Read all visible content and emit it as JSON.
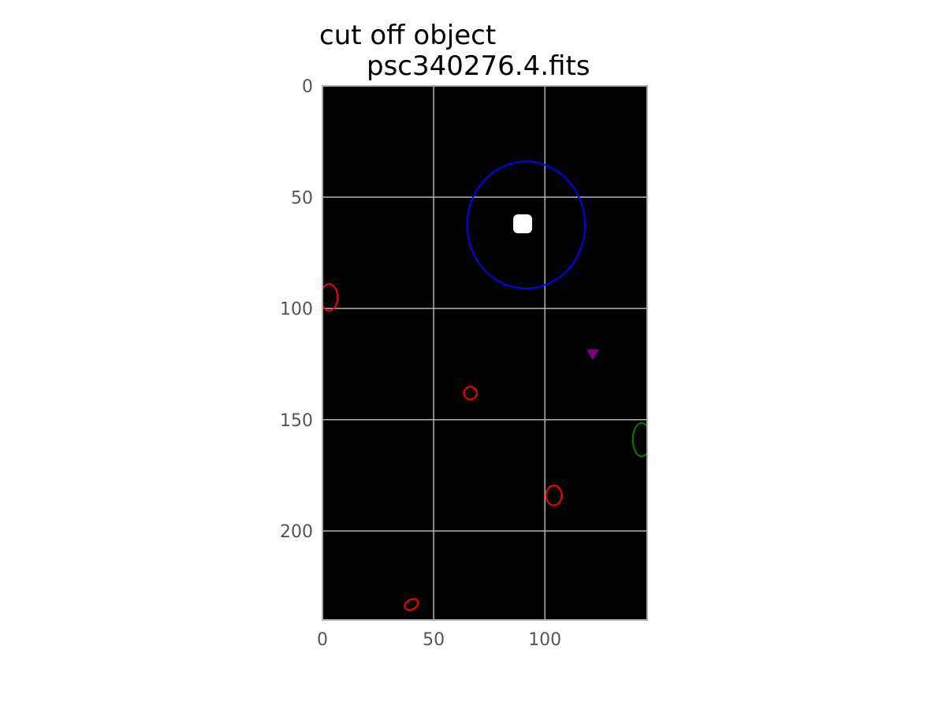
{
  "chart_data": {
    "type": "image",
    "title_lines": [
      "cut off object",
      "psc340276.4.fits"
    ],
    "xlabel": "",
    "ylabel": "",
    "xlim": [
      0,
      146
    ],
    "ylim": [
      240,
      0
    ],
    "xticks": [
      0,
      50,
      100
    ],
    "yticks": [
      0,
      50,
      100,
      150,
      200
    ],
    "grid": true,
    "colors": {
      "background": "#000000",
      "grid": "#b0b0b0",
      "frame": "#b0b0b0",
      "target_ellipse": "#0000ff",
      "source_ellipse": "#ff0000",
      "edge_ellipse": "#008000",
      "marker": "#800080",
      "object": "#ffffff"
    },
    "bright_object": {
      "x": 90,
      "y": 62
    },
    "target_ellipse": {
      "x": 91.5,
      "y": 62.5,
      "rx": 26.5,
      "ry": 28.5
    },
    "edge_ellipse": {
      "x": 143.5,
      "y": 159,
      "rx": 4,
      "ry": 7.5
    },
    "source_ellipses": [
      {
        "x": 3,
        "y": 95,
        "rx": 3.8,
        "ry": 6
      },
      {
        "x": 66.5,
        "y": 138,
        "rx": 2.9,
        "ry": 2.8
      },
      {
        "x": 104,
        "y": 184,
        "rx": 3.5,
        "ry": 4.5
      },
      {
        "x": 40,
        "y": 233,
        "rx": 3.2,
        "ry": 2.2,
        "angle": -30
      }
    ],
    "marker": {
      "x": 121.5,
      "y": 120.5,
      "shape": "triangle-down"
    }
  }
}
